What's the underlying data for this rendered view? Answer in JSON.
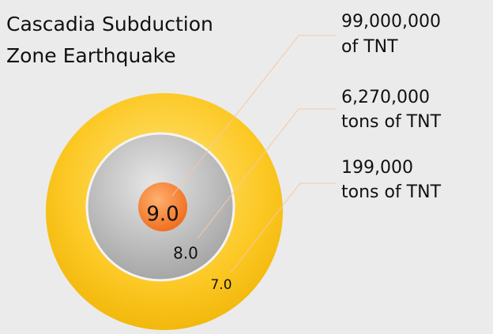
{
  "title": [
    "Cascadia Subduction",
    "Zone Earthquake"
  ],
  "rings": [
    {
      "magnitude": "9.0",
      "energy": [
        "99,000,000",
        "of TNT"
      ]
    },
    {
      "magnitude": "8.0",
      "energy": [
        "6,270,000",
        "tons of TNT"
      ]
    },
    {
      "magnitude": "7.0",
      "energy": [
        "199,000",
        "tons of TNT"
      ]
    }
  ]
}
